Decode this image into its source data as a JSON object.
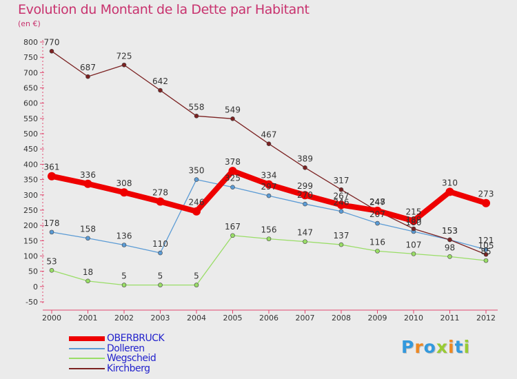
{
  "title": "Evolution du Montant de la Dette par Habitant",
  "unit": "(en €)",
  "chart_data": {
    "type": "line",
    "title": "Evolution du Montant de la Dette par Habitant",
    "subtitle": "(en €)",
    "x": [
      "2000",
      "2001",
      "2002",
      "2003",
      "2004",
      "2005",
      "2006",
      "2007",
      "2008",
      "2009",
      "2010",
      "2011",
      "2012"
    ],
    "ylim": [
      -50,
      800
    ],
    "yticks": [
      -50,
      0,
      50,
      100,
      150,
      200,
      250,
      300,
      350,
      400,
      450,
      500,
      550,
      600,
      650,
      700,
      750,
      800
    ],
    "grid": false,
    "legend_position": "bottom-left",
    "series": [
      {
        "name": "OBERBRUCK",
        "color": "#ee0000",
        "values": [
          361,
          336,
          308,
          278,
          246,
          378,
          334,
          299,
          267,
          248,
          215,
          310,
          273
        ]
      },
      {
        "name": "Dolleren",
        "color": "#5b9bd5",
        "values": [
          178,
          158,
          136,
          110,
          350,
          325,
          297,
          270,
          246,
          207,
          180,
          153,
          121
        ]
      },
      {
        "name": "Wegscheid",
        "color": "#99dd66",
        "values": [
          53,
          18,
          5,
          5,
          5,
          167,
          156,
          147,
          137,
          116,
          107,
          98,
          85
        ]
      },
      {
        "name": "Kirchberg",
        "color": "#7b2222",
        "values": [
          770,
          687,
          725,
          642,
          558,
          549,
          467,
          389,
          317,
          247,
          189,
          153,
          105
        ]
      }
    ]
  },
  "legend": [
    {
      "label": "OBERBRUCK",
      "color": "#ee0000"
    },
    {
      "label": "Dolleren",
      "color": "#5b9bd5"
    },
    {
      "label": "Wegscheid",
      "color": "#99dd66"
    },
    {
      "label": "Kirchberg",
      "color": "#7b2222"
    }
  ],
  "logo": {
    "letters": [
      "P",
      "r",
      "o",
      "x",
      "i",
      "t",
      "i"
    ],
    "colors": [
      "#3399dd",
      "#ee8822",
      "#3399dd",
      "#99cc33",
      "#ee8822",
      "#3399dd",
      "#99cc33"
    ]
  }
}
